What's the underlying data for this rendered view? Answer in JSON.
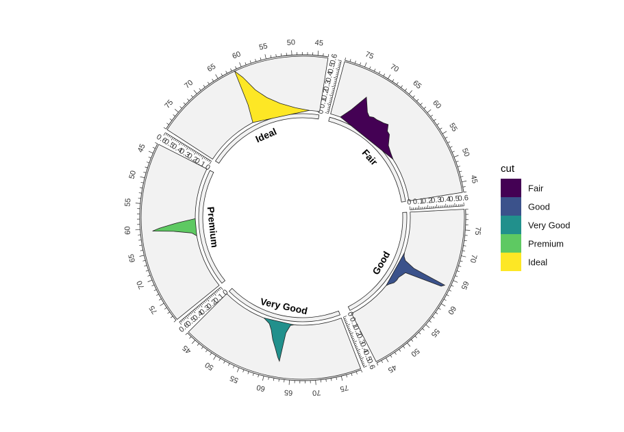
{
  "chart_data": {
    "type": "area",
    "variable": "depth",
    "legend": {
      "title": "cut",
      "placement": "right"
    },
    "colors": {
      "Fair": "#440154",
      "Good": "#3b528b",
      "Very Good": "#21908c",
      "Premium": "#5ec962",
      "Ideal": "#fde725"
    },
    "sectors": [
      {
        "name": "Fair",
        "xlim": [
          43,
          79
        ],
        "x_ticks": [
          45,
          50,
          55,
          60,
          65,
          70,
          75
        ],
        "ylim": [
          0,
          0.6
        ],
        "y_ticks": [
          0,
          0.1,
          0.2,
          0.3,
          0.4,
          0.5,
          0.6
        ],
        "density": {
          "x": [
            56,
            58,
            60,
            62,
            63,
            64,
            64.5,
            65,
            66,
            67,
            68,
            69,
            70,
            72,
            74,
            76
          ],
          "y": [
            0,
            0.02,
            0.05,
            0.14,
            0.15,
            0.21,
            0.2,
            0.19,
            0.18,
            0.17,
            0.17,
            0.15,
            0.18,
            0.32,
            0.12,
            0
          ]
        }
      },
      {
        "name": "Good",
        "xlim": [
          43,
          79
        ],
        "x_ticks": [
          45,
          50,
          55,
          60,
          65,
          70,
          75
        ],
        "ylim": [
          0,
          0.6
        ],
        "y_ticks": [
          0,
          0.1,
          0.2,
          0.3,
          0.4,
          0.5,
          0.6
        ],
        "density": {
          "x": [
            56,
            57,
            58,
            59,
            60,
            61,
            62,
            63,
            63.5,
            64,
            65,
            66,
            67
          ],
          "y": [
            0,
            0.02,
            0.05,
            0.06,
            0.06,
            0.08,
            0.1,
            0.52,
            0.55,
            0.16,
            0.04,
            0.01,
            0
          ]
        }
      },
      {
        "name": "Very Good",
        "xlim": [
          43,
          79
        ],
        "x_ticks": [
          45,
          50,
          55,
          60,
          65,
          70,
          75
        ],
        "ylim": [
          0,
          0.6
        ],
        "y_ticks": [
          0,
          0.1,
          0.2,
          0.3,
          0.4,
          0.5,
          0.6
        ],
        "density": {
          "x": [
            56,
            58,
            59,
            60,
            61,
            62,
            62.5,
            63,
            64,
            65
          ],
          "y": [
            0,
            0.04,
            0.1,
            0.2,
            0.28,
            0.38,
            0.42,
            0.1,
            0.01,
            0
          ]
        }
      },
      {
        "name": "Premium",
        "xlim": [
          43,
          79
        ],
        "x_ticks": [
          45,
          50,
          55,
          60,
          65,
          70,
          75
        ],
        "ylim": [
          0,
          0.6
        ],
        "y_ticks": [
          0,
          0.1,
          0.2,
          0.3,
          0.4,
          0.5,
          0.6
        ],
        "density": {
          "x": [
            58,
            59,
            60,
            60.5,
            61,
            62,
            63
          ],
          "y": [
            0,
            0.2,
            0.4,
            0.48,
            0.25,
            0.05,
            0
          ]
        }
      },
      {
        "name": "Ideal",
        "xlim": [
          43,
          79
        ],
        "x_ticks": [
          45,
          50,
          55,
          60,
          65,
          70,
          75
        ],
        "ylim": [
          0,
          0.6
        ],
        "y_ticks": [
          0,
          0.1,
          0.2,
          0.3,
          0.4,
          0.5,
          0.6
        ],
        "density": {
          "x": [
            46,
            50,
            54,
            57,
            59,
            60.5,
            61.5,
            62,
            63
          ],
          "y": [
            0,
            0.03,
            0.1,
            0.2,
            0.32,
            0.5,
            0.6,
            0.2,
            0
          ]
        }
      }
    ]
  }
}
